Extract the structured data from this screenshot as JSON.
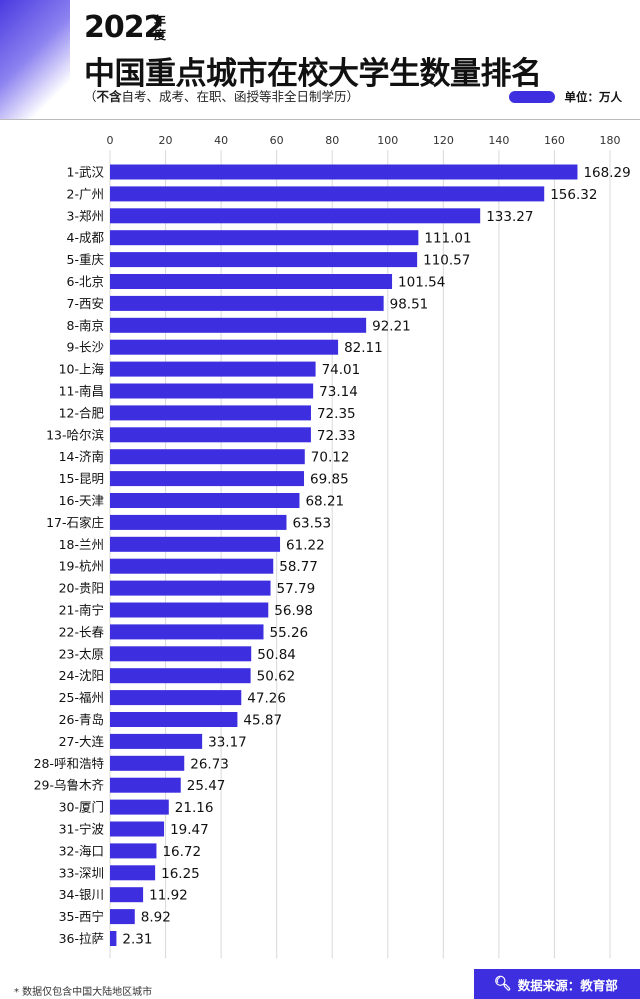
{
  "header": {
    "year": "2022",
    "year_suffix": "年度",
    "title": "中国重点城市在校大学生数量排名",
    "subtitle_prefix": "（",
    "subtitle_bold": "不含",
    "subtitle_rest": "自考、成考、在职、函授等非全日制学历）",
    "unit_label": "单位：万人"
  },
  "footer": {
    "note": "* 数据仅包含中国大陆地区城市",
    "source": "数据来源：教育部"
  },
  "colors": {
    "bar": "#3d2fe0",
    "accent": "#4a3ae0"
  },
  "icons": {
    "source": "search-icon"
  },
  "chart_data": {
    "type": "bar",
    "orientation": "horizontal",
    "title": "中国重点城市在校大学生数量排名",
    "unit": "万人",
    "xlim": [
      0,
      180
    ],
    "xticks": [
      0,
      20,
      40,
      60,
      80,
      100,
      120,
      140,
      160,
      180
    ],
    "grid": true,
    "categories": [
      "1-武汉",
      "2-广州",
      "3-郑州",
      "4-成都",
      "5-重庆",
      "6-北京",
      "7-西安",
      "8-南京",
      "9-长沙",
      "10-上海",
      "11-南昌",
      "12-合肥",
      "13-哈尔滨",
      "14-济南",
      "15-昆明",
      "16-天津",
      "17-石家庄",
      "18-兰州",
      "19-杭州",
      "20-贵阳",
      "21-南宁",
      "22-长春",
      "23-太原",
      "24-沈阳",
      "25-福州",
      "26-青岛",
      "27-大连",
      "28-呼和浩特",
      "29-乌鲁木齐",
      "30-厦门",
      "31-宁波",
      "32-海口",
      "33-深圳",
      "34-银川",
      "35-西宁",
      "36-拉萨"
    ],
    "values": [
      168.29,
      156.32,
      133.27,
      111.01,
      110.57,
      101.54,
      98.51,
      92.21,
      82.11,
      74.01,
      73.14,
      72.35,
      72.33,
      70.12,
      69.85,
      68.21,
      63.53,
      61.22,
      58.77,
      57.79,
      56.98,
      55.26,
      50.84,
      50.62,
      47.26,
      45.87,
      33.17,
      26.73,
      25.47,
      21.16,
      19.47,
      16.72,
      16.25,
      11.92,
      8.92,
      2.31
    ],
    "value_labels": [
      "168.29",
      "156.32",
      "133.27",
      "111.01",
      "110.57",
      "101.54",
      "98.51",
      "92.21",
      "82.11",
      "74.01",
      "73.14",
      "72.35",
      "72.33",
      "70.12",
      "69.85",
      "68.21",
      "63.53",
      "61.22",
      "58.77",
      "57.79",
      "56.98",
      "55.26",
      "50.84",
      "50.62",
      "47.26",
      "45.87",
      "33.17",
      "26.73",
      "25.47",
      "21.16",
      "19.47",
      "16.72",
      "16.25",
      "11.92",
      "8.92",
      "2.31"
    ]
  }
}
